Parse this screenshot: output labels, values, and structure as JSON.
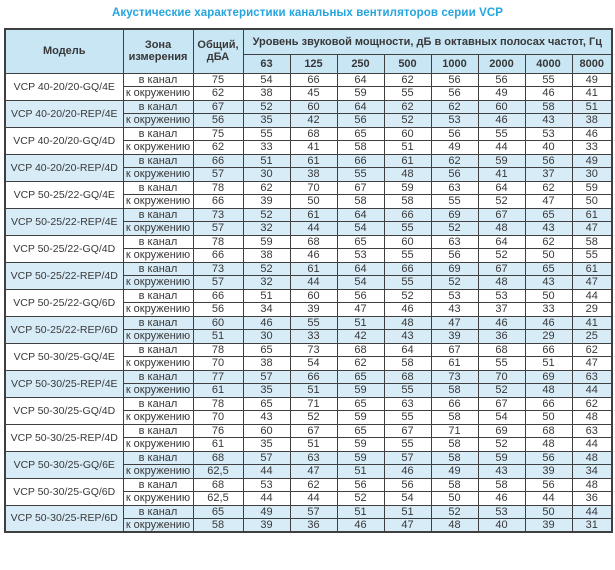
{
  "title": "Акустические характеристики канальных вентиляторов  серии VCP",
  "colors": {
    "title": "#25a5dd",
    "header_background": "#c9e6f5",
    "shaded_row_background": "#d8ecf8",
    "border": "#3f3f3f",
    "text": "#383838"
  },
  "table": {
    "headers": {
      "model": "Модель",
      "zone": "Зона\nизмерения",
      "total": "Общий,\nдБА",
      "spl": "Уровень звуковой мощности, дБ в октавных полосах частот, Гц",
      "frequencies": [
        "63",
        "125",
        "250",
        "500",
        "1000",
        "2000",
        "4000",
        "8000"
      ]
    },
    "groups": [
      {
        "model": "VCP 40-20/20-GQ/4E",
        "shaded": false,
        "rows": [
          {
            "zone": "в канал",
            "total": "75",
            "values": [
              "54",
              "66",
              "64",
              "62",
              "56",
              "56",
              "55",
              "49"
            ]
          },
          {
            "zone": "к окружению",
            "total": "62",
            "values": [
              "38",
              "45",
              "59",
              "55",
              "56",
              "49",
              "46",
              "41"
            ]
          }
        ]
      },
      {
        "model": "VCP 40-20/20-REP/4E",
        "shaded": true,
        "rows": [
          {
            "zone": "в канал",
            "total": "67",
            "values": [
              "52",
              "60",
              "64",
              "62",
              "62",
              "60",
              "58",
              "51"
            ]
          },
          {
            "zone": "к окружению",
            "total": "56",
            "values": [
              "35",
              "42",
              "56",
              "52",
              "53",
              "46",
              "43",
              "38"
            ]
          }
        ]
      },
      {
        "model": "VCP 40-20/20-GQ/4D",
        "shaded": false,
        "rows": [
          {
            "zone": "в канал",
            "total": "75",
            "values": [
              "55",
              "68",
              "65",
              "60",
              "56",
              "55",
              "53",
              "46"
            ]
          },
          {
            "zone": "к окружению",
            "total": "62",
            "values": [
              "33",
              "41",
              "58",
              "51",
              "49",
              "44",
              "40",
              "33"
            ]
          }
        ]
      },
      {
        "model": "VCP 40-20/20-REP/4D",
        "shaded": true,
        "rows": [
          {
            "zone": "в канал",
            "total": "66",
            "values": [
              "51",
              "61",
              "66",
              "61",
              "62",
              "59",
              "56",
              "49"
            ]
          },
          {
            "zone": "к окружению",
            "total": "57",
            "values": [
              "30",
              "38",
              "55",
              "48",
              "56",
              "41",
              "37",
              "30"
            ]
          }
        ]
      },
      {
        "model": "VCP 50-25/22-GQ/4E",
        "shaded": false,
        "rows": [
          {
            "zone": "в канал",
            "total": "78",
            "values": [
              "62",
              "70",
              "67",
              "59",
              "63",
              "64",
              "62",
              "59"
            ]
          },
          {
            "zone": "к окружению",
            "total": "66",
            "values": [
              "39",
              "50",
              "58",
              "58",
              "55",
              "52",
              "47",
              "50"
            ]
          }
        ]
      },
      {
        "model": "VCP 50-25/22-REP/4E",
        "shaded": true,
        "rows": [
          {
            "zone": "в канал",
            "total": "73",
            "values": [
              "52",
              "61",
              "64",
              "66",
              "69",
              "67",
              "65",
              "61"
            ]
          },
          {
            "zone": "к окружению",
            "total": "57",
            "values": [
              "32",
              "44",
              "54",
              "55",
              "52",
              "48",
              "43",
              "47"
            ]
          }
        ]
      },
      {
        "model": "VCP 50-25/22-GQ/4D",
        "shaded": false,
        "rows": [
          {
            "zone": "в канал",
            "total": "78",
            "values": [
              "59",
              "68",
              "65",
              "60",
              "63",
              "64",
              "62",
              "58"
            ]
          },
          {
            "zone": "к окружению",
            "total": "66",
            "values": [
              "38",
              "46",
              "53",
              "55",
              "56",
              "52",
              "50",
              "55"
            ]
          }
        ]
      },
      {
        "model": "VCP 50-25/22-REP/4D",
        "shaded": true,
        "rows": [
          {
            "zone": "в канал",
            "total": "73",
            "values": [
              "52",
              "61",
              "64",
              "66",
              "69",
              "67",
              "65",
              "61"
            ]
          },
          {
            "zone": "к окружению",
            "total": "57",
            "values": [
              "32",
              "44",
              "54",
              "55",
              "52",
              "48",
              "43",
              "47"
            ]
          }
        ]
      },
      {
        "model": "VCP 50-25/22-GQ/6D",
        "shaded": false,
        "rows": [
          {
            "zone": "в канал",
            "total": "66",
            "values": [
              "51",
              "60",
              "56",
              "52",
              "53",
              "53",
              "50",
              "44"
            ]
          },
          {
            "zone": "к окружению",
            "total": "56",
            "values": [
              "34",
              "39",
              "47",
              "46",
              "43",
              "37",
              "33",
              "29"
            ]
          }
        ]
      },
      {
        "model": "VCP 50-25/22-REP/6D",
        "shaded": true,
        "rows": [
          {
            "zone": "в канал",
            "total": "60",
            "values": [
              "46",
              "55",
              "51",
              "48",
              "47",
              "46",
              "46",
              "41"
            ]
          },
          {
            "zone": "к окружению",
            "total": "51",
            "values": [
              "30",
              "33",
              "42",
              "43",
              "39",
              "36",
              "29",
              "25"
            ]
          }
        ]
      },
      {
        "model": "VCP 50-30/25-GQ/4E",
        "shaded": false,
        "rows": [
          {
            "zone": "в канал",
            "total": "78",
            "values": [
              "65",
              "73",
              "68",
              "64",
              "67",
              "68",
              "66",
              "62"
            ]
          },
          {
            "zone": "к окружению",
            "total": "70",
            "values": [
              "38",
              "54",
              "62",
              "58",
              "61",
              "55",
              "51",
              "47"
            ]
          }
        ]
      },
      {
        "model": "VCP 50-30/25-REP/4E",
        "shaded": true,
        "rows": [
          {
            "zone": "в канал",
            "total": "77",
            "values": [
              "57",
              "66",
              "65",
              "68",
              "73",
              "70",
              "69",
              "63"
            ]
          },
          {
            "zone": "к окружению",
            "total": "61",
            "values": [
              "35",
              "51",
              "59",
              "55",
              "58",
              "52",
              "48",
              "44"
            ]
          }
        ]
      },
      {
        "model": "VCP 50-30/25-GQ/4D",
        "shaded": false,
        "rows": [
          {
            "zone": "в канал",
            "total": "78",
            "values": [
              "65",
              "71",
              "65",
              "63",
              "66",
              "67",
              "66",
              "62"
            ]
          },
          {
            "zone": "к окружению",
            "total": "70",
            "values": [
              "43",
              "52",
              "59",
              "55",
              "58",
              "54",
              "50",
              "48"
            ]
          }
        ]
      },
      {
        "model": "VCP 50-30/25-REP/4D",
        "shaded": false,
        "rows": [
          {
            "zone": "в канал",
            "total": "76",
            "values": [
              "60",
              "67",
              "65",
              "67",
              "71",
              "69",
              "68",
              "63"
            ]
          },
          {
            "zone": "к окружению",
            "total": "61",
            "values": [
              "35",
              "51",
              "59",
              "55",
              "58",
              "52",
              "48",
              "44"
            ]
          }
        ]
      },
      {
        "model": "VCP 50-30/25-GQ/6E",
        "shaded": true,
        "rows": [
          {
            "zone": "в канал",
            "total": "68",
            "values": [
              "57",
              "63",
              "59",
              "57",
              "58",
              "59",
              "56",
              "48"
            ]
          },
          {
            "zone": "к окружению",
            "total": "62,5",
            "values": [
              "44",
              "47",
              "51",
              "46",
              "49",
              "43",
              "39",
              "34"
            ]
          }
        ]
      },
      {
        "model": "VCP 50-30/25-GQ/6D",
        "shaded": false,
        "rows": [
          {
            "zone": "в канал",
            "total": "68",
            "values": [
              "53",
              "62",
              "56",
              "56",
              "58",
              "58",
              "56",
              "48"
            ]
          },
          {
            "zone": "к окружению",
            "total": "62,5",
            "values": [
              "44",
              "44",
              "52",
              "54",
              "50",
              "46",
              "44",
              "36"
            ]
          }
        ]
      },
      {
        "model": "VCP 50-30/25-REP/6D",
        "shaded": true,
        "rows": [
          {
            "zone": "в канал",
            "total": "65",
            "values": [
              "49",
              "57",
              "51",
              "51",
              "52",
              "53",
              "50",
              "44"
            ]
          },
          {
            "zone": "к окружению",
            "total": "58",
            "values": [
              "39",
              "36",
              "46",
              "47",
              "48",
              "40",
              "39",
              "31"
            ]
          }
        ]
      }
    ]
  }
}
